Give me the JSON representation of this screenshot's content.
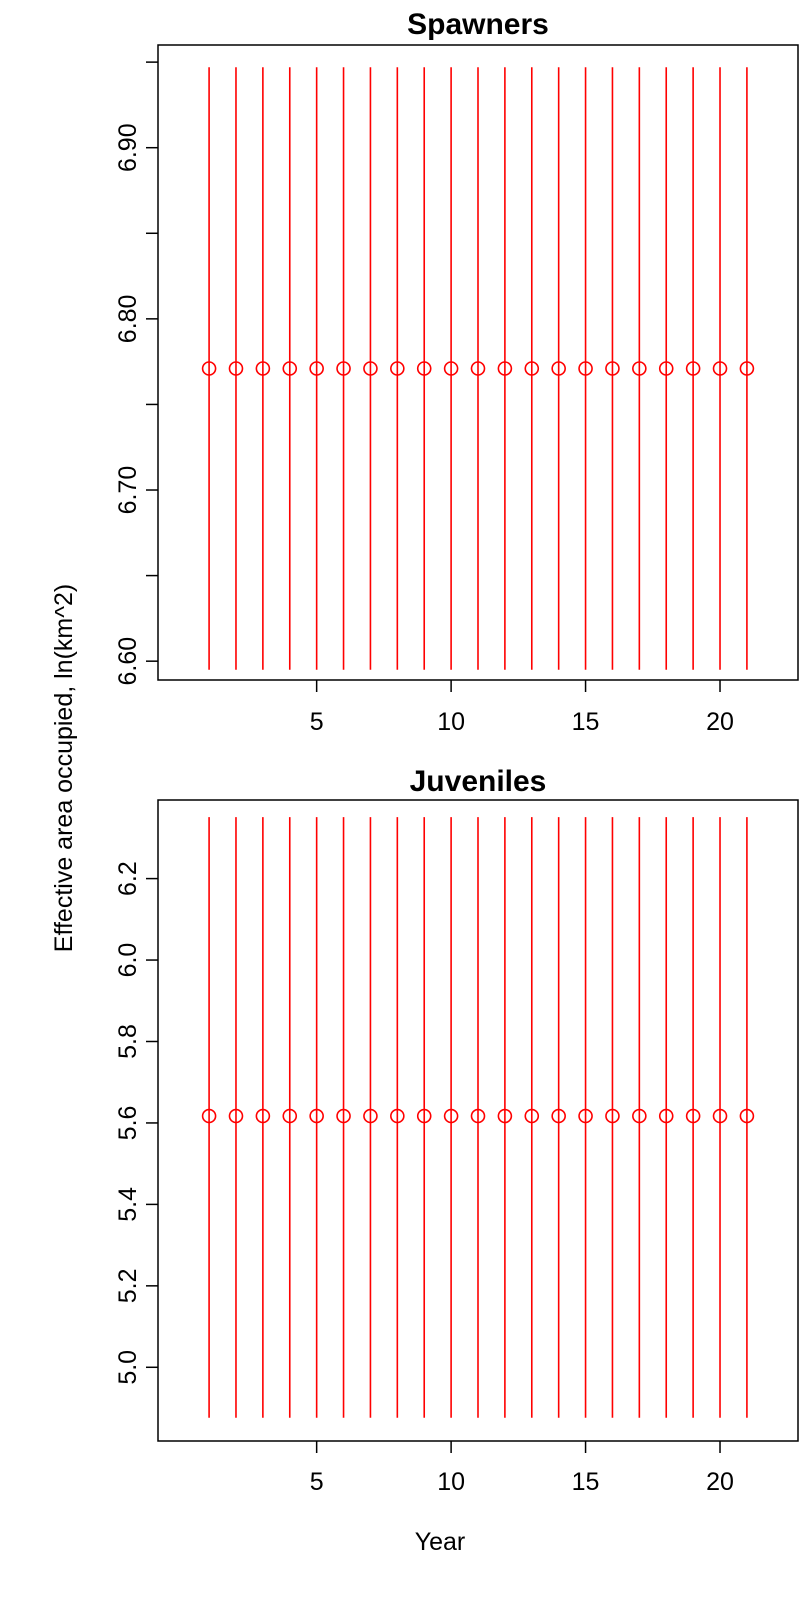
{
  "chart_data": [
    {
      "type": "scatter",
      "title": "Spawners",
      "xlabel": "Year",
      "ylabel": "Effective area occupied, ln(km^2)",
      "x": [
        1,
        2,
        3,
        4,
        5,
        6,
        7,
        8,
        9,
        10,
        11,
        12,
        13,
        14,
        15,
        16,
        17,
        18,
        19,
        20,
        21
      ],
      "y": [
        6.771,
        6.771,
        6.771,
        6.771,
        6.771,
        6.771,
        6.771,
        6.771,
        6.771,
        6.771,
        6.771,
        6.771,
        6.771,
        6.771,
        6.771,
        6.771,
        6.771,
        6.771,
        6.771,
        6.771,
        6.771
      ],
      "error_lower": 6.595,
      "error_upper": 6.947,
      "xlim": [
        -0.9,
        22.9
      ],
      "ylim": [
        6.589,
        6.96
      ],
      "x_ticks": [
        5,
        10,
        15,
        20
      ],
      "x_tick_labels": [
        "5",
        "10",
        "15",
        "20"
      ],
      "y_ticks": [
        6.6,
        6.65,
        6.7,
        6.75,
        6.8,
        6.85,
        6.9,
        6.95
      ],
      "y_tick_labels": [
        "6.60",
        "",
        "6.70",
        "",
        "6.80",
        "",
        "6.90",
        ""
      ],
      "color": "#ff0000",
      "grid": false
    },
    {
      "type": "scatter",
      "title": "Juveniles",
      "xlabel": "Year",
      "ylabel": "Effective area occupied, ln(km^2)",
      "x": [
        1,
        2,
        3,
        4,
        5,
        6,
        7,
        8,
        9,
        10,
        11,
        12,
        13,
        14,
        15,
        16,
        17,
        18,
        19,
        20,
        21
      ],
      "y": [
        5.617,
        5.617,
        5.617,
        5.617,
        5.617,
        5.617,
        5.617,
        5.617,
        5.617,
        5.617,
        5.617,
        5.617,
        5.617,
        5.617,
        5.617,
        5.617,
        5.617,
        5.617,
        5.617,
        5.617,
        5.617
      ],
      "error_lower": 4.876,
      "error_upper": 6.351,
      "xlim": [
        -0.9,
        22.9
      ],
      "ylim": [
        4.819,
        6.393
      ],
      "x_ticks": [
        5,
        10,
        15,
        20
      ],
      "x_tick_labels": [
        "5",
        "10",
        "15",
        "20"
      ],
      "y_ticks": [
        5.0,
        5.2,
        5.4,
        5.6,
        5.8,
        6.0,
        6.2
      ],
      "y_tick_labels": [
        "5.0",
        "5.2",
        "5.4",
        "5.6",
        "5.8",
        "6.0",
        "6.2"
      ],
      "color": "#ff0000",
      "grid": false
    }
  ],
  "shared": {
    "xlabel": "Year",
    "ylabel": "Effective area occupied, ln(km^2)"
  }
}
